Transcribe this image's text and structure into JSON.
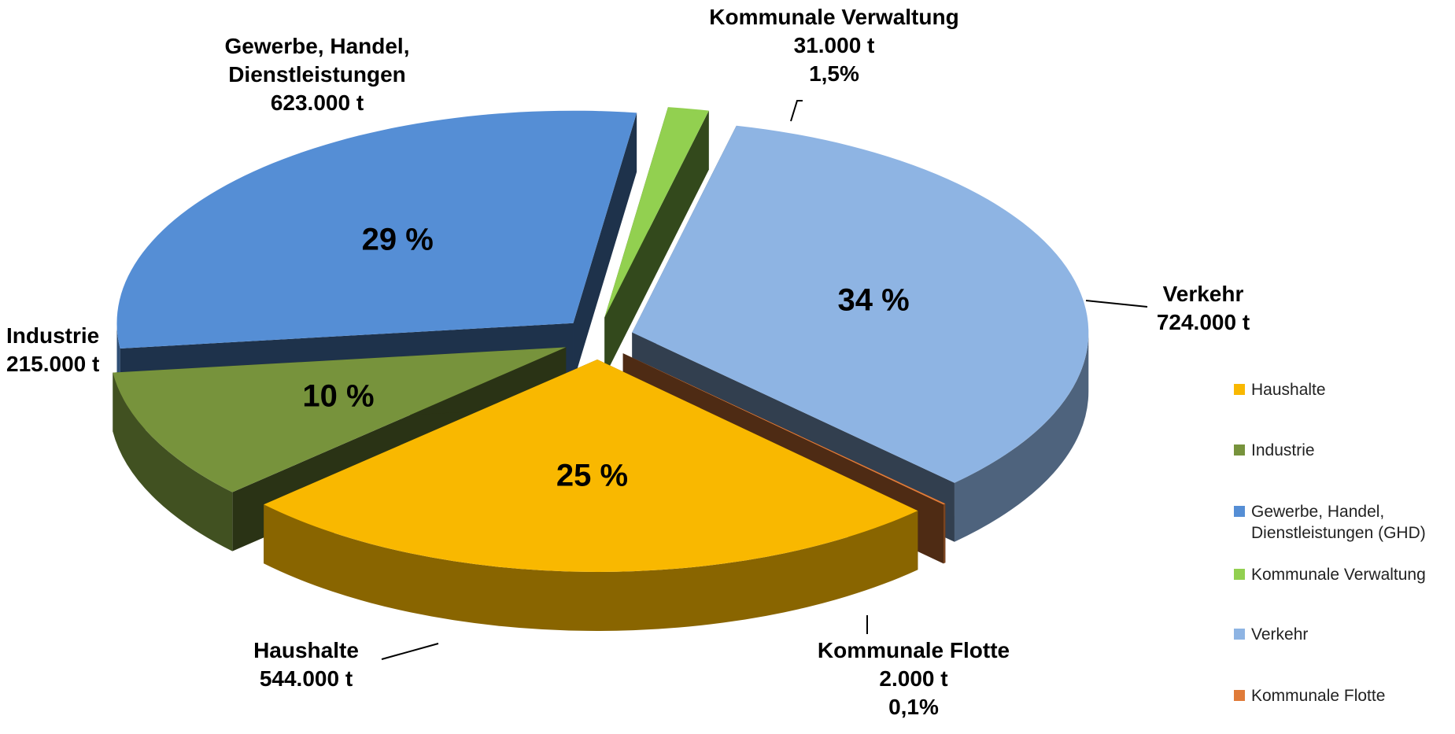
{
  "chart_data": {
    "type": "pie",
    "categories": [
      "Haushalte",
      "Industrie",
      "Gewerbe, Handel, Dienstleistungen (GHD)",
      "Kommunale Verwaltung",
      "Verkehr",
      "Kommunale Flotte"
    ],
    "slice_labels": [
      "Haushalte",
      "Industrie",
      "Gewerbe, Handel, Dienstleistungen",
      "Kommunale Verwaltung",
      "Verkehr",
      "Kommunale Flotte"
    ],
    "values": [
      544000,
      215000,
      623000,
      31000,
      724000,
      2000
    ],
    "value_labels": [
      "544.000 t",
      "215.000 t",
      "623.000 t",
      "31.000 t",
      "724.000 t",
      "2.000 t"
    ],
    "percent_labels": [
      "25 %",
      "10 %",
      "29 %",
      "1,5%",
      "34 %",
      "0,1%"
    ],
    "colors": [
      "#f9b800",
      "#77933c",
      "#558ed5",
      "#92d050",
      "#8eb4e3",
      "#e07b39"
    ],
    "legend": "right",
    "three_d": true
  }
}
